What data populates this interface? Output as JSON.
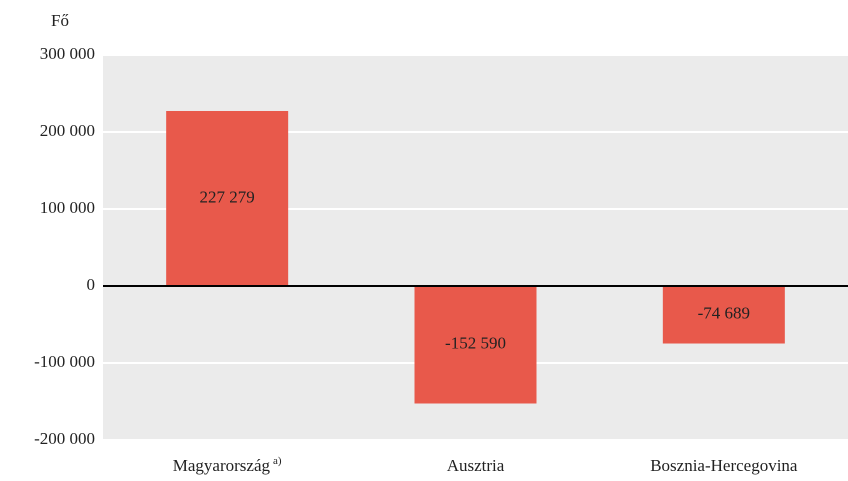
{
  "chart_data": {
    "type": "bar",
    "y_axis_label": "Fő",
    "categories": [
      "Magyarország",
      "Ausztria",
      "Bosznia-Hercegovina"
    ],
    "category_superscripts": [
      "a)",
      null,
      null
    ],
    "values": [
      227279,
      -152590,
      -74689
    ],
    "value_labels": [
      "227 279",
      "-152 590",
      "-74 689"
    ],
    "color": "#e8594b",
    "ylim": [
      -200000,
      300000
    ],
    "yticks": [
      {
        "value": -200000,
        "label": "-200 000"
      },
      {
        "value": -100000,
        "label": "-100 000"
      },
      0,
      {
        "value": 100000,
        "label": "100 000"
      },
      {
        "value": 200000,
        "label": "200 000"
      },
      {
        "value": 300000,
        "label": "300 000"
      }
    ],
    "grid": true
  }
}
